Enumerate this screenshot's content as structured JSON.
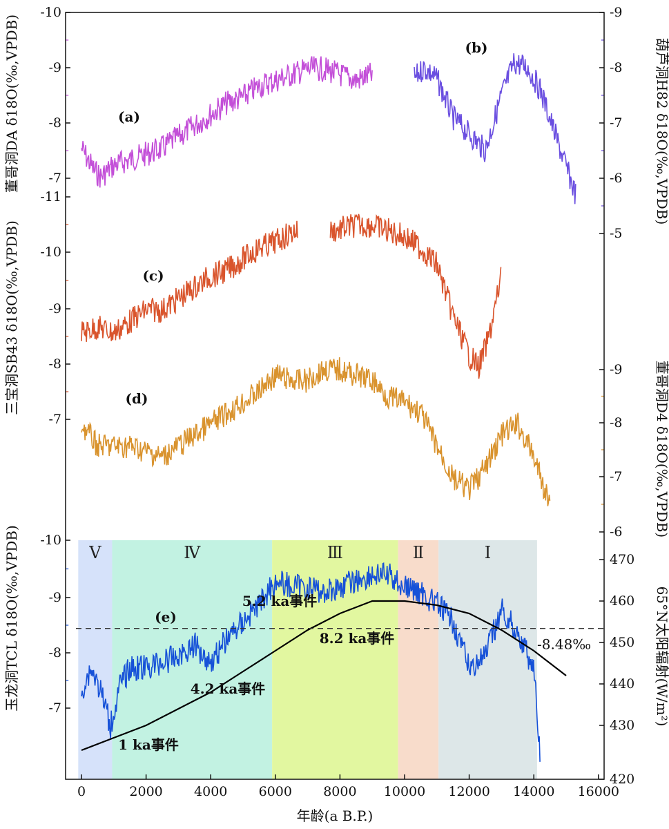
{
  "chart_data": {
    "type": "line",
    "x_axis": {
      "label": "年龄(a B.P.)",
      "range": [
        -500,
        16000
      ],
      "ticks": [
        0,
        2000,
        4000,
        6000,
        8000,
        10000,
        12000,
        14000,
        16000
      ]
    },
    "panels": [
      {
        "id": "a",
        "tag": "(a)",
        "name": "董哥洞DA",
        "axis_label": "董哥洞DA δ18O(‰,VPDB)",
        "side": "left",
        "color": "#c34fd8",
        "ticks": [
          "-10",
          "-9",
          "-8",
          "-7"
        ],
        "tick_values": [
          -10,
          -9,
          -8,
          -7
        ],
        "x": [
          0,
          200,
          400,
          600,
          800,
          1000,
          1500,
          2000,
          2500,
          3000,
          3500,
          4000,
          4500,
          5000,
          5500,
          6000,
          6500,
          7000,
          7500,
          8000,
          8500,
          9000
        ],
        "y": [
          -7.6,
          -7.4,
          -7.2,
          -7.1,
          -7.2,
          -7.3,
          -7.4,
          -7.5,
          -7.6,
          -7.8,
          -8.0,
          -8.2,
          -8.4,
          -8.5,
          -8.7,
          -8.8,
          -8.9,
          -9.0,
          -9.0,
          -8.9,
          -8.8,
          -8.9
        ]
      },
      {
        "id": "b",
        "tag": "(b)",
        "name": "葫芦洞H82",
        "axis_label": "葫芦洞H82 δ18O(‰,VPDB)",
        "side": "right",
        "color": "#6a4ee0",
        "ticks": [
          "-9",
          "-8",
          "-7",
          "-6",
          "-5"
        ],
        "tick_values": [
          -9,
          -8,
          -7,
          -6,
          -5
        ],
        "x": [
          10300,
          10600,
          11000,
          11500,
          12000,
          12500,
          13000,
          13400,
          13800,
          14200,
          14600,
          15000,
          15300
        ],
        "y": [
          -7.8,
          -8.0,
          -7.8,
          -7.1,
          -6.8,
          -6.5,
          -7.5,
          -8.1,
          -8.0,
          -7.6,
          -6.9,
          -6.2,
          -5.7
        ]
      },
      {
        "id": "c",
        "tag": "(c)",
        "name": "三宝洞SB43",
        "axis_label": "三宝洞SB43 δ18O(‰,VPDB)",
        "side": "left",
        "color": "#d9542c",
        "ticks": [
          "-11",
          "-10",
          "-9",
          "-8",
          "-7"
        ],
        "tick_values": [
          -11,
          -10,
          -9,
          -8,
          -7
        ],
        "x": [
          0,
          500,
          1000,
          1500,
          2000,
          2500,
          3000,
          3500,
          4000,
          4500,
          5000,
          5500,
          6000,
          6600,
          7800,
          8500,
          9000,
          9500,
          10000,
          10500,
          11000,
          11500,
          12000,
          12300,
          12600,
          13000
        ],
        "y": [
          -8.6,
          -8.7,
          -8.6,
          -8.8,
          -9.0,
          -9.0,
          -9.2,
          -9.4,
          -9.6,
          -9.7,
          -9.9,
          -10.1,
          -10.2,
          -10.4,
          -10.4,
          -10.5,
          -10.5,
          -10.4,
          -10.3,
          -10.1,
          -9.8,
          -8.9,
          -8.2,
          -8.0,
          -8.5,
          -9.6
        ]
      },
      {
        "id": "d",
        "tag": "(d)",
        "name": "董哥洞D4",
        "axis_label": "董哥洞D4 δ18O(‰,VPDB)",
        "side": "right",
        "color": "#d9932e",
        "ticks": [
          "-9",
          "-8",
          "-7",
          "-6"
        ],
        "tick_values": [
          -9,
          -8,
          -7,
          -6
        ],
        "x": [
          0,
          500,
          1000,
          1500,
          2000,
          2500,
          3000,
          3500,
          4000,
          4500,
          5000,
          5500,
          6000,
          6500,
          7000,
          7500,
          8000,
          8500,
          9000,
          9500,
          10000,
          10500,
          11000,
          11500,
          12000,
          12500,
          13000,
          13500,
          14000,
          14500
        ],
        "y": [
          -8.0,
          -7.6,
          -7.6,
          -7.6,
          -7.5,
          -7.4,
          -7.6,
          -7.8,
          -8.0,
          -8.2,
          -8.4,
          -8.6,
          -8.9,
          -8.8,
          -8.8,
          -9.0,
          -9.0,
          -8.9,
          -8.8,
          -8.5,
          -8.4,
          -8.2,
          -7.6,
          -7.0,
          -6.8,
          -7.2,
          -7.8,
          -8.0,
          -7.4,
          -6.5
        ]
      },
      {
        "id": "e",
        "tag": "(e)",
        "name": "玉龙洞TCL",
        "axis_label": "玉龙洞TCL δ18O(‰,VPDB)",
        "side": "left",
        "color": "#1651d8",
        "ticks": [
          "-10",
          "-9",
          "-8",
          "-7"
        ],
        "tick_values": [
          -10,
          -9,
          -8,
          -7
        ],
        "x": [
          0,
          300,
          600,
          900,
          1200,
          1500,
          2000,
          2500,
          3000,
          3500,
          4000,
          4500,
          5000,
          5500,
          6000,
          6500,
          7000,
          7500,
          8000,
          8500,
          9000,
          9500,
          10000,
          10500,
          11000,
          11500,
          12000,
          12500,
          13000,
          13500,
          14000,
          14200
        ],
        "y": [
          -7.4,
          -7.8,
          -7.4,
          -6.8,
          -7.5,
          -7.8,
          -7.8,
          -7.9,
          -8.0,
          -8.2,
          -7.9,
          -8.3,
          -8.6,
          -8.9,
          -9.3,
          -9.2,
          -9.2,
          -9.1,
          -9.2,
          -9.3,
          -9.4,
          -9.4,
          -9.2,
          -9.1,
          -8.9,
          -8.6,
          -7.8,
          -8.0,
          -8.8,
          -8.4,
          -7.8,
          -6.2
        ]
      }
    ],
    "insolation": {
      "label": "65°N太阳辐射(W/m²)",
      "ticks": [
        "470",
        "460",
        "450",
        "440",
        "430",
        "420"
      ],
      "tick_values": [
        470,
        460,
        450,
        440,
        430,
        420
      ],
      "x": [
        0,
        1000,
        2000,
        3000,
        4000,
        5000,
        6000,
        7000,
        8000,
        9000,
        10000,
        11000,
        12000,
        13000,
        14000,
        15000
      ],
      "y": [
        427,
        430,
        433,
        437,
        441,
        446,
        451,
        456,
        460,
        463,
        463,
        462,
        460,
        456,
        451,
        445
      ],
      "color": "#000000"
    },
    "threshold": {
      "value": -8.48,
      "label": "-8.48‰"
    },
    "stages": [
      {
        "label": "Ⅴ",
        "from": -100,
        "to": 950,
        "color": "#d6e2fa"
      },
      {
        "label": "Ⅳ",
        "from": 950,
        "to": 5900,
        "color": "#c2f2e2"
      },
      {
        "label": "Ⅲ",
        "from": 5900,
        "to": 9800,
        "color": "#e2f7a0"
      },
      {
        "label": "Ⅱ",
        "from": 9800,
        "to": 11050,
        "color": "#f8dccb"
      },
      {
        "label": "Ⅰ",
        "from": 11050,
        "to": 14100,
        "color": "#dde7e8"
      }
    ],
    "events": [
      {
        "label": "1 ka事件",
        "age": 1000
      },
      {
        "label": "4.2 ka事件",
        "age": 4200
      },
      {
        "label": "5.2 ka事件",
        "age": 5200
      },
      {
        "label": "8.2 ka事件",
        "age": 8200
      }
    ]
  }
}
